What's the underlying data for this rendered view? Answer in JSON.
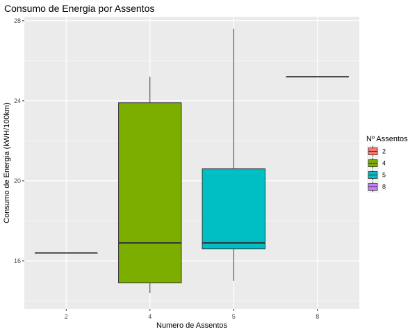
{
  "chart_data": {
    "type": "boxplot",
    "title": "Consumo de Energia por Assentos",
    "xlabel": "Numero de Assentos",
    "ylabel": "Consumo de Energia (kWH/100km)",
    "ylim": [
      13.6,
      28.2
    ],
    "yticks": [
      16,
      20,
      24,
      28
    ],
    "grid": true,
    "legend": {
      "title": "Nº Assentos",
      "position": "right"
    },
    "categories": [
      "2",
      "4",
      "5",
      "8"
    ],
    "colors": [
      "#F8766D",
      "#7CAE00",
      "#00BFC4",
      "#C77CFF"
    ],
    "boxes": [
      {
        "label": "2",
        "min": 16.4,
        "q1": 16.4,
        "median": 16.4,
        "q3": 16.4,
        "max": 16.4
      },
      {
        "label": "4",
        "min": 14.4,
        "q1": 14.9,
        "median": 16.9,
        "q3": 23.9,
        "max": 25.2
      },
      {
        "label": "5",
        "min": 15.0,
        "q1": 16.6,
        "median": 16.9,
        "q3": 20.6,
        "max": 27.6
      },
      {
        "label": "8",
        "min": 25.2,
        "q1": 25.2,
        "median": 25.2,
        "q3": 25.2,
        "max": 25.2
      }
    ]
  }
}
